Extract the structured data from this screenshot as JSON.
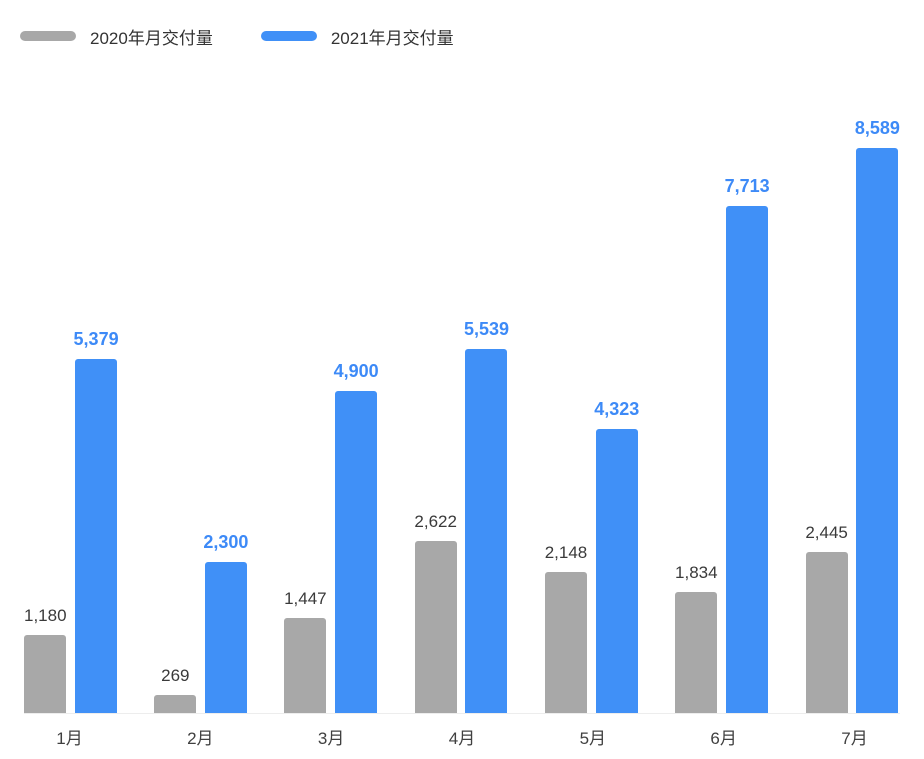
{
  "background": "#ffffff",
  "legend": {
    "position": "top-left",
    "items": [
      {
        "label": "2020年月交付量",
        "color": "#a8a8a8"
      },
      {
        "label": "2021年月交付量",
        "color": "#4090f7"
      }
    ]
  },
  "chart_data": {
    "type": "bar",
    "title": "",
    "xlabel": "",
    "ylabel": "",
    "grid": false,
    "y_axis_visible": false,
    "legend_position": "top-left",
    "categories": [
      "1月",
      "2月",
      "3月",
      "4月",
      "5月",
      "6月",
      "7月"
    ],
    "series": [
      {
        "key": "2020",
        "name": "2020年月交付量",
        "color": "#a8a8a8",
        "label_color": "#3a3a3a",
        "values": [
          1180,
          269,
          1447,
          2622,
          2148,
          1834,
          2445
        ],
        "value_labels": [
          "1,180",
          "269",
          "1,447",
          "2,622",
          "2,148",
          "1,834",
          "2,445"
        ]
      },
      {
        "key": "2021",
        "name": "2021年月交付量",
        "color": "#4090f7",
        "label_color": "#3d8af7",
        "values": [
          5379,
          2300,
          4900,
          5539,
          4323,
          7713,
          8589
        ],
        "value_labels": [
          "5,379",
          "2,300",
          "4,900",
          "5,539",
          "4,323",
          "7,713",
          "8,589"
        ]
      }
    ],
    "ylim": [
      0,
      8589
    ]
  }
}
